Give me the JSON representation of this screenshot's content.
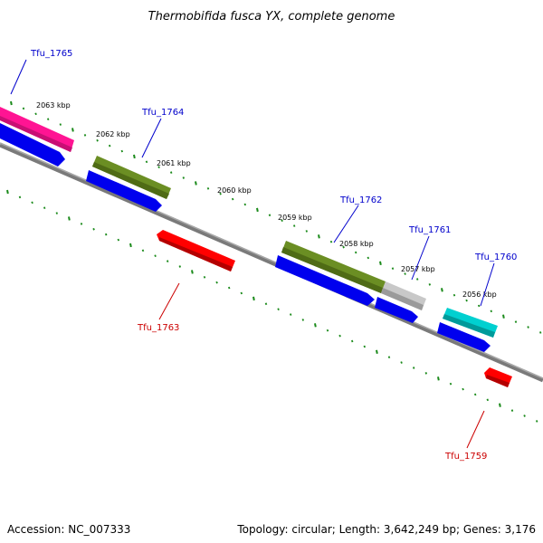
{
  "title": "Thermobifida fusca YX, complete genome",
  "accession_text": "Accession: NC_007333",
  "topology_text": "Topology: circular; Length: 3,642,249 bp; Genes: 3,176",
  "kbp_labels": [
    "2063 kbp",
    "2062 kbp",
    "2061 kbp",
    "2060 kbp",
    "2059 kbp",
    "2058 kbp",
    "2057 kbp",
    "2056 kbp"
  ],
  "gene_labels": {
    "fwd": [
      "Tfu_1765",
      "Tfu_1764",
      "Tfu_1762",
      "Tfu_1761",
      "Tfu_1760"
    ],
    "rev": [
      "Tfu_1763",
      "Tfu_1759"
    ]
  },
  "colors": {
    "backbone": "#7a7a7a",
    "ticks": "#1a8a1a",
    "cds_blue": "#0000ee",
    "gene_pink": "#ff1493",
    "gene_olive": "#6b8e23",
    "gene_grey": "#bdbdbd",
    "gene_cyan": "#00cccc",
    "gene_red": "#ff0000",
    "label_fwd": "#0000cc",
    "label_rev": "#cc0000"
  }
}
